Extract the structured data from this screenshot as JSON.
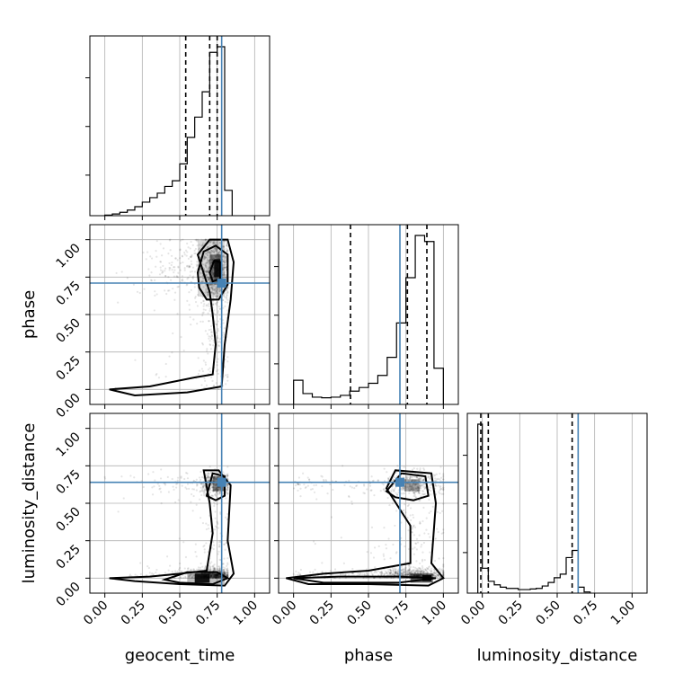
{
  "chart_data": {
    "type": "corner",
    "parameters": [
      "geocent_time",
      "phase",
      "luminosity_distance"
    ],
    "injected_values": {
      "geocent_time": 0.78,
      "phase": 0.71,
      "luminosity_distance": 0.64
    },
    "axes_range": [
      -0.1,
      1.1
    ],
    "ticks": [
      "0.00",
      "0.25",
      "0.50",
      "0.75",
      "1.00"
    ],
    "grid": true,
    "quantiles": {
      "geocent_time": [
        0.54,
        0.7,
        0.75
      ],
      "phase": [
        0.38,
        0.76,
        0.89
      ],
      "luminosity_distance": [
        -0.01,
        0.04,
        0.6
      ]
    },
    "histograms": {
      "geocent_time": {
        "bin_edges": [
          0.0,
          0.05,
          0.1,
          0.15,
          0.2,
          0.25,
          0.3,
          0.35,
          0.4,
          0.45,
          0.5,
          0.55,
          0.6,
          0.65,
          0.7,
          0.75,
          0.8,
          0.85
        ],
        "counts": [
          1,
          3,
          6,
          10,
          16,
          24,
          32,
          40,
          52,
          62,
          92,
          139,
          175,
          220,
          290,
          300,
          45
        ]
      },
      "phase": {
        "bin_edges": [
          0.0,
          0.0625,
          0.125,
          0.1875,
          0.25,
          0.3125,
          0.375,
          0.4375,
          0.5,
          0.5625,
          0.625,
          0.6875,
          0.75,
          0.8125,
          0.875,
          0.9375,
          1.0
        ],
        "counts": [
          40,
          18,
          12,
          11,
          12,
          15,
          22,
          28,
          35,
          48,
          78,
          135,
          210,
          280,
          270,
          60
        ]
      },
      "luminosity_distance": {
        "bin_edges": [
          -0.03,
          0.0,
          0.04,
          0.08,
          0.12,
          0.16,
          0.2,
          0.24,
          0.28,
          0.32,
          0.36,
          0.4,
          0.44,
          0.48,
          0.52,
          0.56,
          0.6,
          0.64,
          0.68,
          0.72
        ],
        "counts": [
          285,
          42,
          20,
          14,
          10,
          8,
          8,
          6,
          6,
          7,
          8,
          12,
          18,
          26,
          32,
          60,
          72,
          10,
          2
        ]
      }
    }
  }
}
